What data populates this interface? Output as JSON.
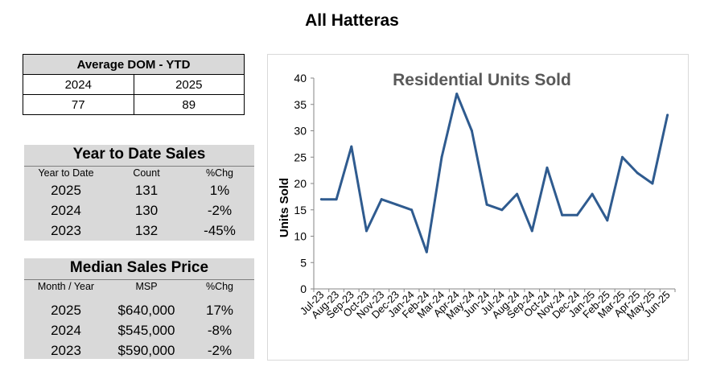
{
  "page_title": "All Hatteras",
  "dom": {
    "title": "Average DOM - YTD",
    "years": [
      "2024",
      "2025"
    ],
    "values": [
      "77",
      "89"
    ]
  },
  "ytd_sales": {
    "title": "Year to Date Sales",
    "headers": [
      "Year to Date",
      "Count",
      "%Chg"
    ],
    "rows": [
      {
        "year": "2025",
        "count": "131",
        "chg": "1%"
      },
      {
        "year": "2024",
        "count": "130",
        "chg": "-2%"
      },
      {
        "year": "2023",
        "count": "132",
        "chg": "-45%"
      }
    ]
  },
  "median_price": {
    "title": "Median Sales Price",
    "headers": [
      "Month / Year",
      "MSP",
      "%Chg"
    ],
    "rows": [
      {
        "year": "2025",
        "msp": "$640,000",
        "chg": "17%"
      },
      {
        "year": "2024",
        "msp": "$545,000",
        "chg": "-8%"
      },
      {
        "year": "2023",
        "msp": "$590,000",
        "chg": "-2%"
      }
    ]
  },
  "chart_data": {
    "type": "line",
    "title": "Residential Units Sold",
    "ylabel": "Units Sold",
    "xlabel": "",
    "ylim": [
      0,
      40
    ],
    "yticks": [
      0,
      5,
      10,
      15,
      20,
      25,
      30,
      35,
      40
    ],
    "grid": false,
    "line_color": "#2f5b8f",
    "categories": [
      "Jul-23",
      "Aug-23",
      "Sep-23",
      "Oct-23",
      "Nov-23",
      "Dec-23",
      "Jan-24",
      "Feb-24",
      "Mar-24",
      "Apr-24",
      "May-24",
      "Jun-24",
      "Jul-24",
      "Aug-24",
      "Sep-24",
      "Oct-24",
      "Nov-24",
      "Dec-24",
      "Jan-25",
      "Feb-25",
      "Mar-25",
      "Apr-25",
      "May-25",
      "Jun-25"
    ],
    "values": [
      17,
      17,
      27,
      11,
      17,
      16,
      15,
      7,
      25,
      37,
      30,
      16,
      15,
      18,
      11,
      23,
      14,
      14,
      18,
      13,
      25,
      22,
      20,
      33
    ]
  }
}
